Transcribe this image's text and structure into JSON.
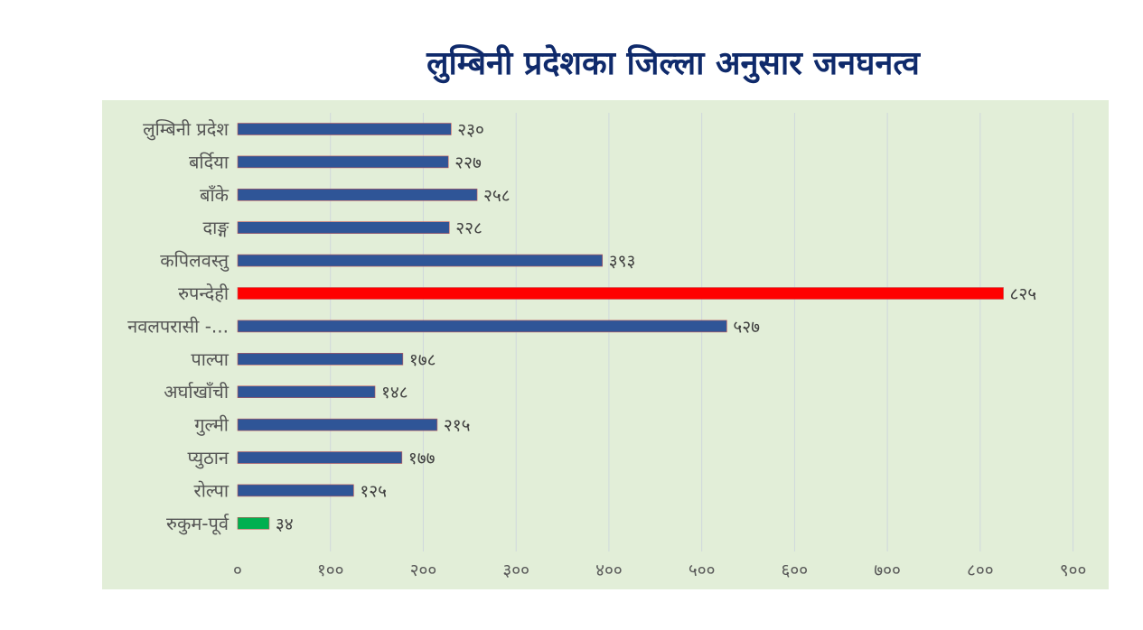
{
  "chart_data": {
    "type": "bar",
    "orientation": "horizontal",
    "title": "लुम्बिनी प्रदेशका जिल्ला अनुसार जनघनत्व",
    "categories": [
      "लुम्बिनी प्रदेश",
      "बर्दिया",
      "बाँके",
      "दाङ्ग",
      "कपिलवस्तु",
      "रुपन्देही",
      "नवलपरासी -...",
      "पाल्पा",
      "अर्घाखाँची",
      "गुल्मी",
      "प्युठान",
      "रोल्पा",
      "रुकुम-पूर्व"
    ],
    "values": [
      230,
      227,
      258,
      228,
      393,
      825,
      527,
      178,
      148,
      215,
      177,
      125,
      34
    ],
    "value_labels": [
      "२३०",
      "२२७",
      "२५८",
      "२२८",
      "३९३",
      "८२५",
      "५२७",
      "१७८",
      "१४८",
      "२१५",
      "१७७",
      "१२५",
      "३४"
    ],
    "bar_colors": [
      "#2f5597",
      "#2f5597",
      "#2f5597",
      "#2f5597",
      "#2f5597",
      "#ff0000",
      "#2f5597",
      "#2f5597",
      "#2f5597",
      "#2f5597",
      "#2f5597",
      "#2f5597",
      "#00b050"
    ],
    "x_ticks": [
      0,
      100,
      200,
      300,
      400,
      500,
      600,
      700,
      800,
      900
    ],
    "x_tick_labels": [
      "०",
      "१००",
      "२००",
      "३००",
      "४००",
      "५००",
      "६००",
      "७००",
      "८००",
      "९००"
    ],
    "xlim": [
      0,
      900
    ],
    "grid": "vertical",
    "legend": "none",
    "xlabel": "",
    "ylabel": ""
  },
  "colors": {
    "title": "#0f2a6b",
    "plot_background": "#e2eed8",
    "default_bar": "#2f5597",
    "highlight_bar": "#ff0000",
    "lowest_bar": "#00b050"
  }
}
